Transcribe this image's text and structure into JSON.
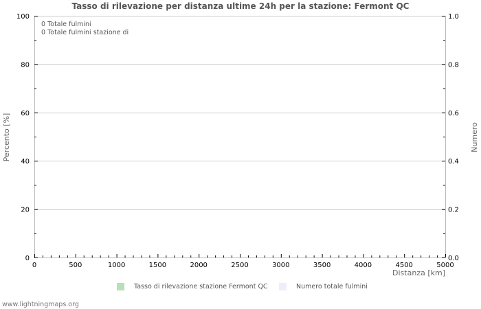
{
  "chart_data": {
    "type": "bar",
    "title": "Tasso di rilevazione per distanza ultime 24h per la stazione: Fermont QC",
    "xlabel": "Distanza   [km]",
    "ylabel": "Percento   [%]",
    "ylabel_right": "Numero",
    "xlim": [
      0,
      5000
    ],
    "ylim": [
      0,
      100
    ],
    "ylim_right": [
      0.0,
      1.0
    ],
    "x_ticks": [
      "0",
      "500",
      "1000",
      "1500",
      "2000",
      "2500",
      "3000",
      "3500",
      "4000",
      "4500",
      "5000"
    ],
    "y_ticks": [
      "0",
      "20",
      "40",
      "60",
      "80",
      "100"
    ],
    "y_ticks_right": [
      "0.0",
      "0.2",
      "0.4",
      "0.6",
      "0.8",
      "1.0"
    ],
    "grid": true,
    "legend_position": "bottom",
    "series": [
      {
        "name": "Tasso di rilevazione stazione Fermont QC",
        "color": "#b8e0b8",
        "values": []
      },
      {
        "name": "Numero totale fulmini",
        "color": "#eeeefa",
        "values": []
      }
    ],
    "annotations": [
      "0 Totale fulmini",
      "0 Totale fulmini stazione di"
    ]
  },
  "footer": "www.lightningmaps.org"
}
